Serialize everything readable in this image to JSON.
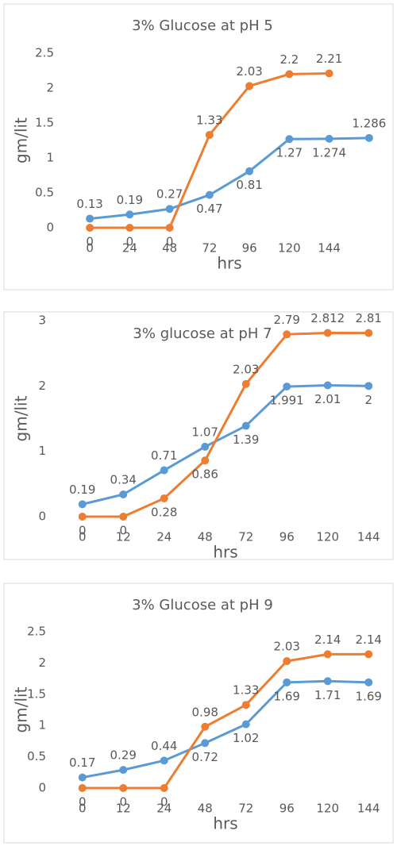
{
  "chart_data": [
    {
      "type": "line",
      "title": "3% Glucose at pH 5",
      "x_label": "hrs",
      "y_label": "gm/lit",
      "categories": [
        "0",
        "24",
        "48",
        "72",
        "96",
        "120",
        "144",
        null
      ],
      "ylim": [
        0,
        2.5
      ],
      "yticks": [
        0,
        0.5,
        1,
        1.5,
        2,
        2.5
      ],
      "series": [
        {
          "name": null,
          "color": "#5b9bd5",
          "values": [
            0.13,
            0.19,
            0.27,
            0.47,
            0.81,
            1.27,
            1.274,
            1.286
          ]
        },
        {
          "name": null,
          "color": "#ed7d31",
          "values": [
            0,
            0,
            0,
            1.33,
            2.03,
            2.2,
            2.21,
            null
          ]
        }
      ]
    },
    {
      "type": "line",
      "title": "3% glucose at pH 7",
      "x_label": "hrs",
      "y_label": "gm/lit",
      "categories": [
        "0",
        "12",
        "24",
        "48",
        "72",
        "96",
        "120",
        "144"
      ],
      "ylim": [
        0,
        3
      ],
      "yticks": [
        0,
        1,
        2,
        3
      ],
      "series": [
        {
          "name": null,
          "color": "#5b9bd5",
          "values": [
            0.19,
            0.34,
            0.71,
            1.07,
            1.39,
            1.991,
            2.01,
            2
          ]
        },
        {
          "name": null,
          "color": "#ed7d31",
          "values": [
            0,
            0,
            0.28,
            0.86,
            2.03,
            2.79,
            2.812,
            2.81
          ]
        }
      ]
    },
    {
      "type": "line",
      "title": "3% Glucose at pH 9",
      "x_label": "hrs",
      "y_label": "gm/lit",
      "categories": [
        "0",
        "12",
        "24",
        "48",
        "72",
        "96",
        "120",
        "144"
      ],
      "ylim": [
        0,
        2.5
      ],
      "yticks": [
        0,
        0.5,
        1,
        1.5,
        2,
        2.5
      ],
      "series": [
        {
          "name": null,
          "color": "#5b9bd5",
          "values": [
            0.17,
            0.29,
            0.44,
            0.72,
            1.02,
            1.69,
            1.71,
            1.69
          ]
        },
        {
          "name": null,
          "color": "#ed7d31",
          "values": [
            0,
            0,
            0,
            0.98,
            1.33,
            2.03,
            2.14,
            2.14
          ]
        }
      ]
    }
  ]
}
